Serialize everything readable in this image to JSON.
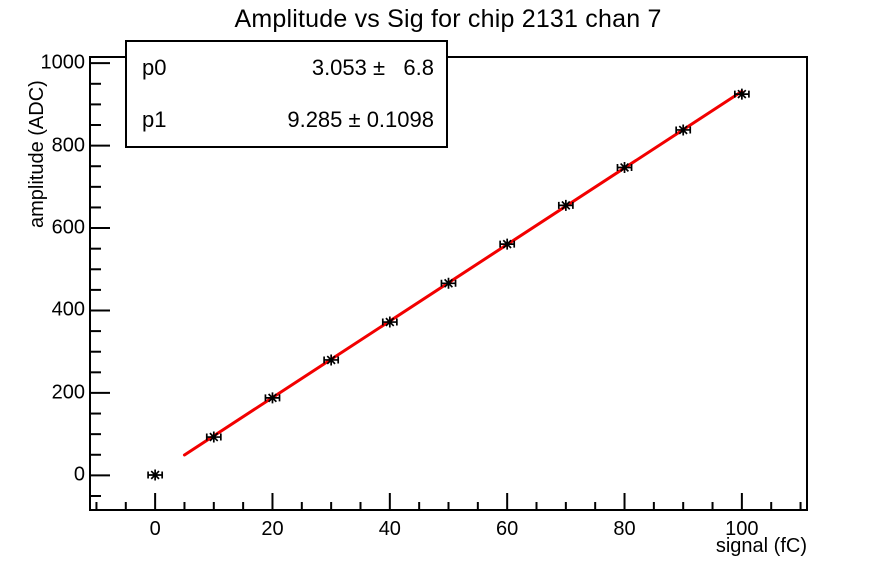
{
  "title": "Amplitude vs Sig for chip 2131 chan 7",
  "stats_box": {
    "rows": [
      {
        "param": "p0",
        "value": "3.053 ±   6.8"
      },
      {
        "param": "p1",
        "value": "9.285 ± 0.1098"
      }
    ]
  },
  "chart_data": {
    "type": "scatter",
    "title": "Amplitude vs Sig for chip 2131 chan 7",
    "xlabel": "signal (fC)",
    "ylabel": "amplitude (ADC)",
    "xlim": [
      -11.1,
      111.1
    ],
    "ylim": [
      -84,
      1015
    ],
    "x_ticks": [
      0,
      20,
      40,
      60,
      80,
      100
    ],
    "y_ticks": [
      0,
      200,
      400,
      600,
      800,
      1000
    ],
    "x_minor_step": 5,
    "y_minor_step": 50,
    "grid": false,
    "legend": "none",
    "points": {
      "x": [
        0,
        10,
        20,
        30,
        40,
        50,
        60,
        70,
        80,
        90,
        100
      ],
      "y": [
        1,
        93,
        188,
        280,
        372,
        466,
        561,
        655,
        747,
        838,
        925
      ],
      "xerr": 1.2
    },
    "fit": {
      "model": "p0 + p1*x",
      "p0": 3.053,
      "p0_err": 6.8,
      "p1": 9.285,
      "p1_err": 0.1098,
      "range": [
        5,
        100
      ],
      "color": "#f20000",
      "line_width": 3
    },
    "marker": "asterisk-with-xerr",
    "colors": {
      "marker": "#000000",
      "frame": "#000000",
      "background": "#ffffff"
    }
  }
}
